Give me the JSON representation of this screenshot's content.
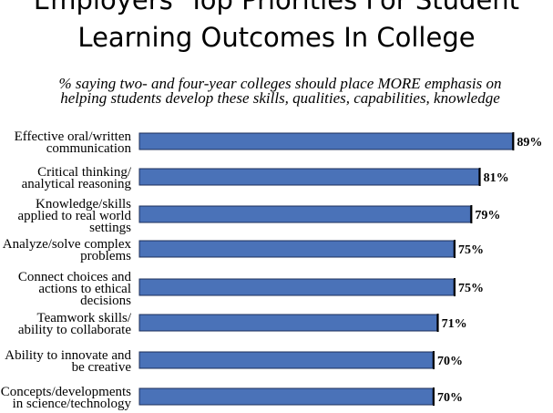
{
  "chart_data": {
    "type": "bar",
    "orientation": "horizontal",
    "title_lines": [
      "Employers' Top Priorities For Student",
      "Learning Outcomes In College"
    ],
    "subtitle_lines": [
      "% saying two- and four-year colleges should place MORE emphasis on",
      "helping students develop these skills, qualities, capabilities, knowledge"
    ],
    "categories": [
      [
        "Effective oral/written",
        "communication"
      ],
      [
        "Critical thinking/",
        "analytical reasoning"
      ],
      [
        "Knowledge/skills",
        "applied to real world",
        "settings"
      ],
      [
        "Analyze/solve complex",
        "problems"
      ],
      [
        "Connect choices and",
        "actions to ethical",
        "decisions"
      ],
      [
        "Teamwork skills/",
        "ability to collaborate"
      ],
      [
        "Ability to innovate and",
        "be creative"
      ],
      [
        "Concepts/developments",
        "in science/technology"
      ]
    ],
    "values": [
      89,
      81,
      79,
      75,
      75,
      71,
      70,
      70
    ],
    "value_labels": [
      "89%",
      "81%",
      "79%",
      "75%",
      "75%",
      "71%",
      "70%",
      "70%"
    ],
    "xlim": [
      0,
      100
    ],
    "bar_color": "#4a72b8",
    "bar_edge_color": "#1c2f5a"
  }
}
